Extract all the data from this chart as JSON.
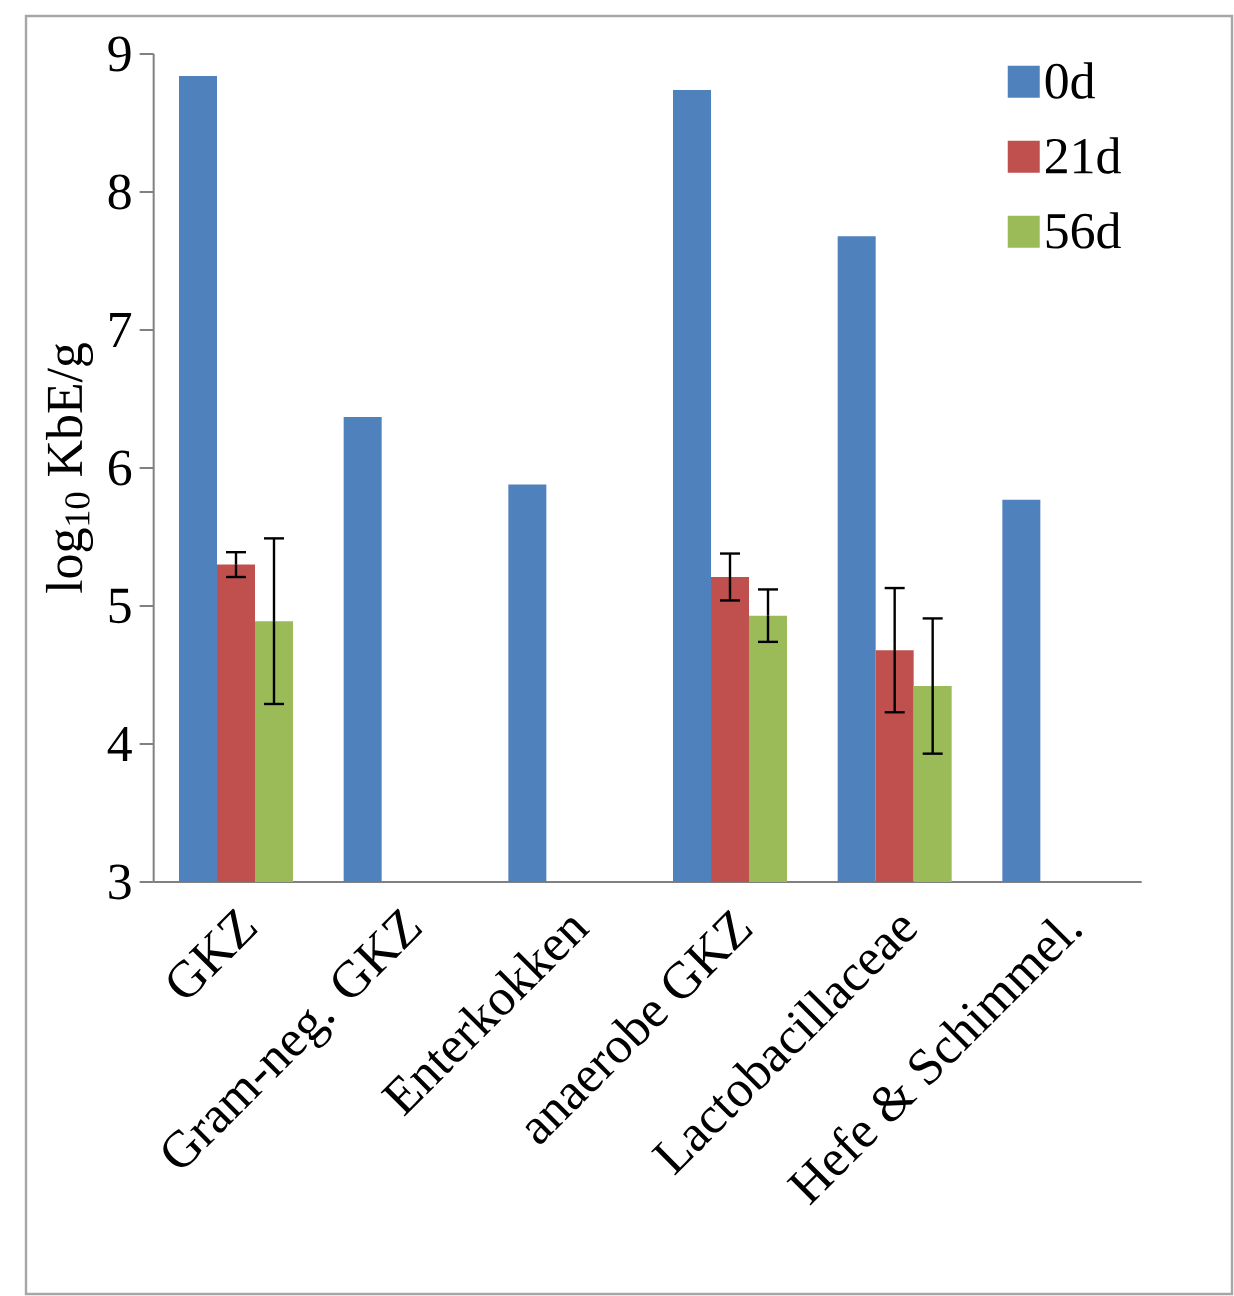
{
  "chart_data": {
    "type": "bar",
    "ylabel": "log$_{10}$ KbE/g",
    "categories": [
      "GKZ",
      "Gram-neg. GKZ",
      "Enterkokken",
      "anaerobe GKZ",
      "Lactobacillaceae",
      "Hefe & Schimmel."
    ],
    "series": [
      {
        "name": "0d",
        "color": "#4f81bd",
        "values": [
          8.84,
          6.37,
          5.88,
          8.74,
          7.68,
          5.77
        ]
      },
      {
        "name": "21d",
        "color": "#c0504d",
        "values": [
          5.3,
          null,
          null,
          5.21,
          4.68,
          null
        ],
        "errors": [
          0.09,
          null,
          null,
          0.17,
          0.45,
          null
        ]
      },
      {
        "name": "56d",
        "color": "#9bbb59",
        "values": [
          4.89,
          null,
          null,
          4.93,
          4.42,
          null
        ],
        "errors": [
          0.6,
          null,
          null,
          0.19,
          0.49,
          null
        ]
      }
    ],
    "ylim": [
      3,
      9
    ],
    "yticks": [
      3,
      4,
      5,
      6,
      7,
      8,
      9
    ],
    "legend": "top right"
  }
}
